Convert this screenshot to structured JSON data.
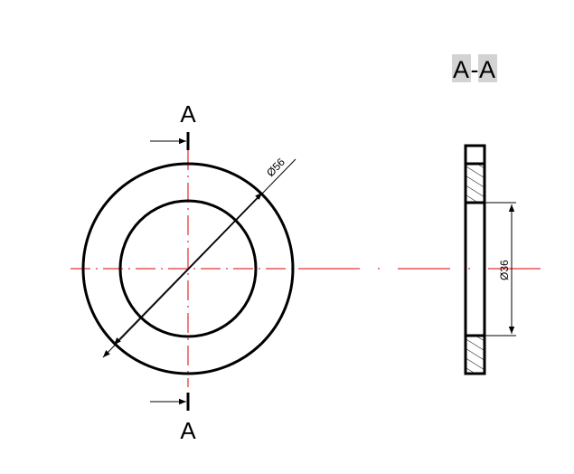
{
  "section_title": {
    "left": "A",
    "sep": "-",
    "right": "A",
    "highlight_color": "#d3d3d3"
  },
  "section_marker_top": "A",
  "section_marker_bottom": "A",
  "dimension_outer": "Ø56",
  "dimension_inner": "Ø36",
  "colors": {
    "outline": "#000000",
    "centerline": "#e00000",
    "hatch": "#000000"
  }
}
